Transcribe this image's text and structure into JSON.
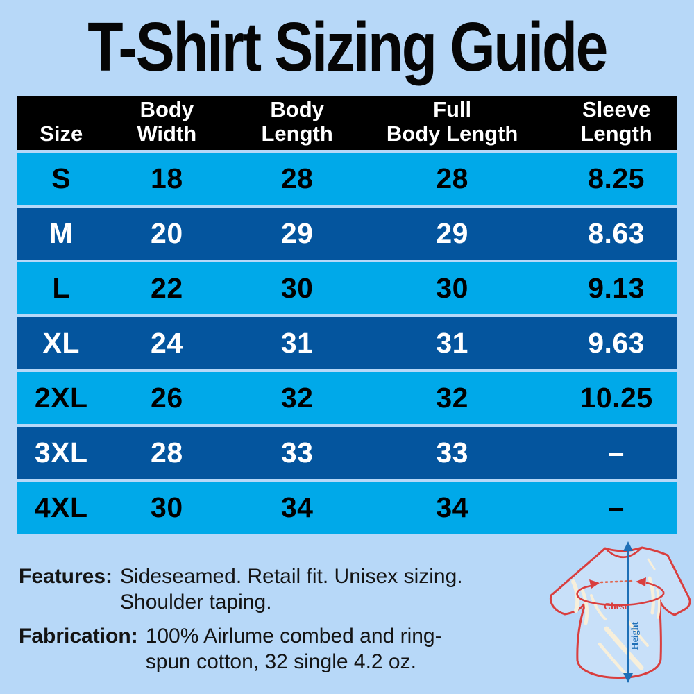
{
  "title": "T-Shirt Sizing Guide",
  "table": {
    "headers": [
      {
        "line1": "",
        "line2": "Size"
      },
      {
        "line1": "Body",
        "line2": "Width"
      },
      {
        "line1": "Body",
        "line2": "Length"
      },
      {
        "line1": "Full",
        "line2": "Body Length"
      },
      {
        "line1": "Sleeve",
        "line2": "Length"
      }
    ],
    "rows": [
      {
        "size": "S",
        "body_width": "18",
        "body_length": "28",
        "full_body_length": "28",
        "sleeve_length": "8.25"
      },
      {
        "size": "M",
        "body_width": "20",
        "body_length": "29",
        "full_body_length": "29",
        "sleeve_length": "8.63"
      },
      {
        "size": "L",
        "body_width": "22",
        "body_length": "30",
        "full_body_length": "30",
        "sleeve_length": "9.13"
      },
      {
        "size": "XL",
        "body_width": "24",
        "body_length": "31",
        "full_body_length": "31",
        "sleeve_length": "9.63"
      },
      {
        "size": "2XL",
        "body_width": "26",
        "body_length": "32",
        "full_body_length": "32",
        "sleeve_length": "10.25"
      },
      {
        "size": "3XL",
        "body_width": "28",
        "body_length": "33",
        "full_body_length": "33",
        "sleeve_length": "–"
      },
      {
        "size": "4XL",
        "body_width": "30",
        "body_length": "34",
        "full_body_length": "34",
        "sleeve_length": "–"
      }
    ]
  },
  "chart_data": {
    "type": "table",
    "title": "T-Shirt Sizing Guide",
    "columns": [
      "Size",
      "Body Width",
      "Body Length",
      "Full Body Length",
      "Sleeve Length"
    ],
    "rows": [
      [
        "S",
        18,
        28,
        28,
        8.25
      ],
      [
        "M",
        20,
        29,
        29,
        8.63
      ],
      [
        "L",
        22,
        30,
        30,
        9.13
      ],
      [
        "XL",
        24,
        31,
        31,
        9.63
      ],
      [
        "2XL",
        26,
        32,
        32,
        10.25
      ],
      [
        "3XL",
        28,
        33,
        33,
        null
      ],
      [
        "4XL",
        30,
        34,
        34,
        null
      ]
    ]
  },
  "notes": {
    "features": {
      "label": "Features:",
      "line1": "Sideseamed. Retail fit. Unisex sizing.",
      "line2": "Shoulder taping."
    },
    "fabrication": {
      "label": "Fabrication:",
      "line1": "100% Airlume combed and ring-",
      "line2": "spun cotton, 32 single 4.2 oz."
    }
  },
  "diagram": {
    "chest_label": "Chest",
    "height_label": "Height"
  },
  "colors": {
    "background": "#b7d8f8",
    "row_light": "#00a9e9",
    "row_dark": "#04559e",
    "header_bg": "#000000",
    "title_text": "#060606",
    "diagram_red": "#d93e3e",
    "diagram_dotted_red": "#e2664e",
    "diagram_blue": "#1e6fb6",
    "fabric_highlight": "#f7efdb",
    "shirt_fill": "#c8e0f9"
  }
}
